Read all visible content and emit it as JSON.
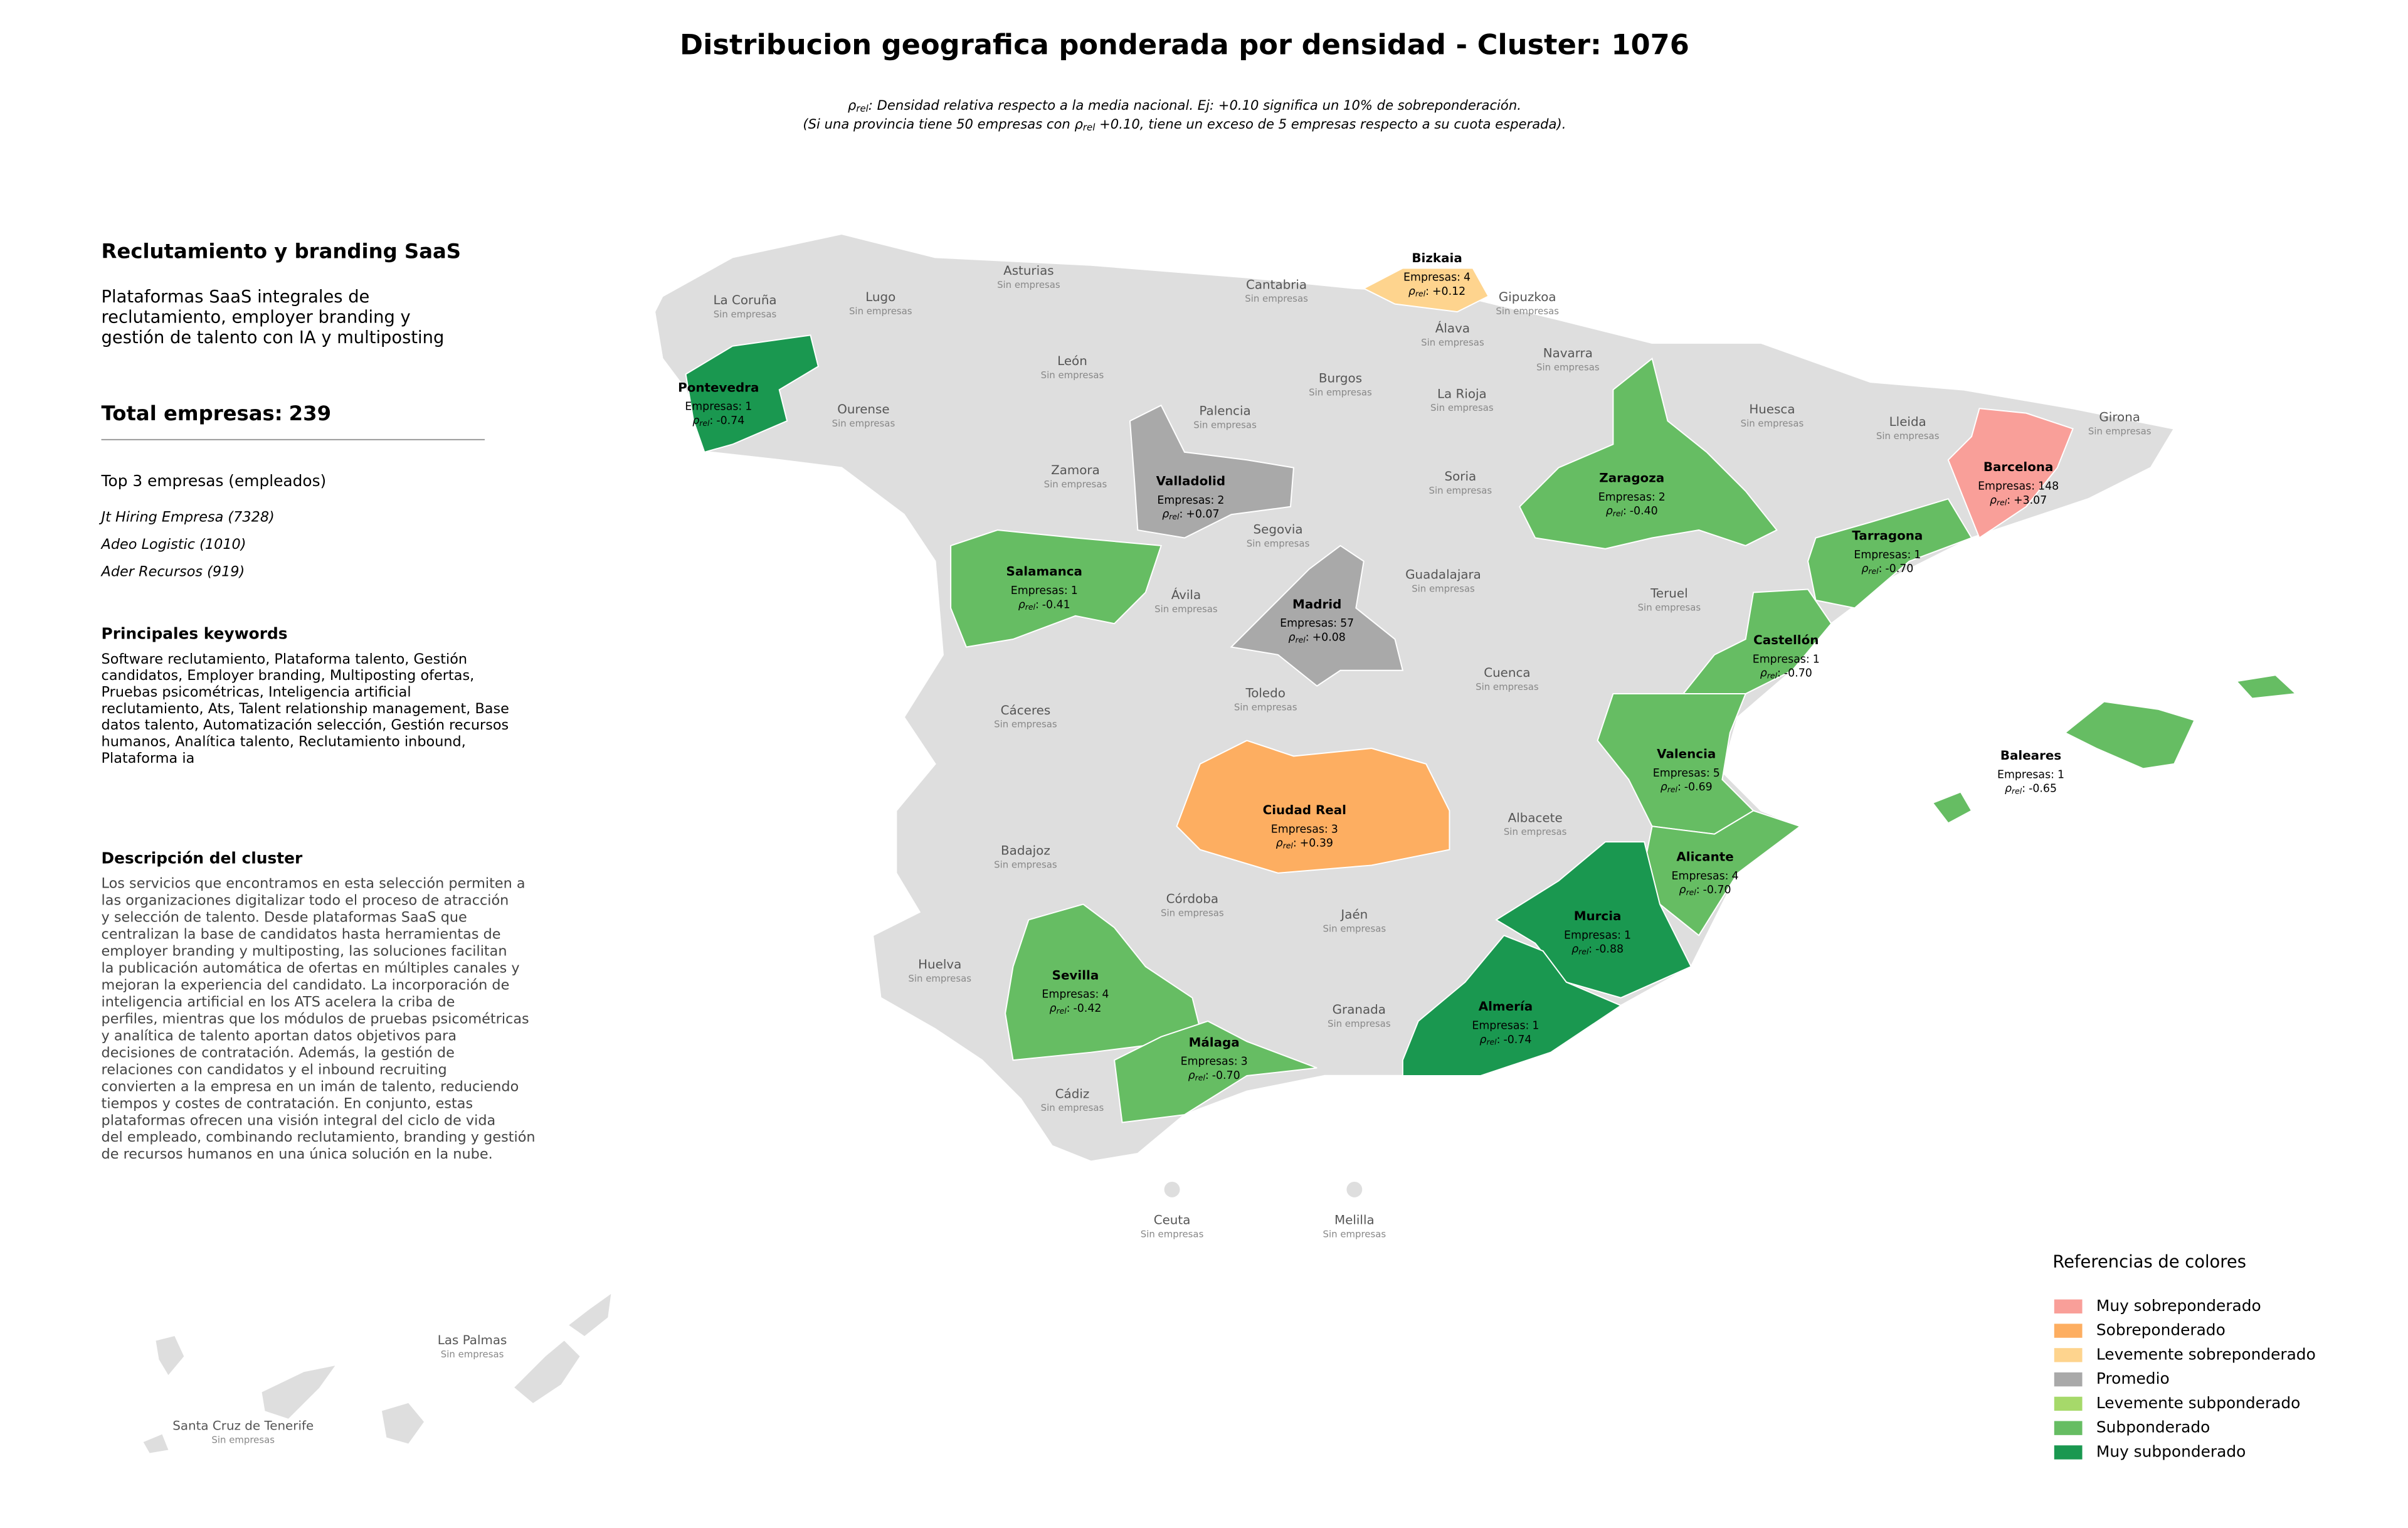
{
  "title": "Distribucion geografica ponderada por densidad - Cluster: 1076",
  "subtitle": {
    "rho_symbol": "ρ",
    "rho_subscript": "rel",
    "line1_text": ": Densidad relativa respecto a la media nacional. Ej: +0.10 significa un 10% de sobreponderación.",
    "line2_before": "(Si una provincia tiene 50 empresas con ",
    "line2_after": " +0.10, tiene un exceso de 5 empresas respecto a su cuota esperada)."
  },
  "panel": {
    "title": "Reclutamiento y branding SaaS",
    "summary_lines": [
      "Plataformas SaaS integrales de",
      "reclutamiento, employer branding y",
      "gestión de talento con IA y multiposting"
    ],
    "total_label": "Total empresas:",
    "total": 239,
    "top_heading": "Top 3 empresas (empleados)",
    "top_companies": [
      "Jt Hiring Empresa (7328)",
      "Adeo Logistic (1010)",
      "Ader Recursos (919)"
    ],
    "keywords_heading": "Principales keywords",
    "keywords_lines": [
      "Software reclutamiento, Plataforma talento, Gestión",
      "candidatos, Employer branding, Multiposting ofertas,",
      "Pruebas psicométricas, Inteligencia artificial",
      "reclutamiento, Ats, Talent relationship management, Base",
      "datos talento, Automatización selección, Gestión recursos",
      "humanos, Analítica talento, Reclutamiento inbound,",
      "Plataforma ia"
    ],
    "description_heading": "Descripción del cluster",
    "description_lines": [
      "Los servicios que encontramos en esta selección permiten a",
      "las organizaciones digitalizar todo el proceso de atracción",
      "y selección de talento. Desde plataformas SaaS que",
      "centralizan la base de candidatos hasta herramientas de",
      "employer branding y multiposting, las soluciones facilitan",
      "la publicación automática de ofertas en múltiples canales y",
      "mejoran la experiencia del candidato. La incorporación de",
      "inteligencia artificial en los ATS acelera la criba de",
      "perfiles, mientras que los módulos de pruebas psicométricas",
      "y analítica de talento aportan datos objetivos para",
      "decisiones de contratación. Además, la gestión de",
      "relaciones con candidatos y el inbound recruiting",
      "convierten a la empresa en un imán de talento, reduciendo",
      "tiempos y costes de contratación. En conjunto, estas",
      "plataformas ofrecen una visión integral del ciclo de vida",
      "del empleado, combinando reclutamiento, branding y gestión",
      "de recursos humanos en una única solución en la nube."
    ]
  },
  "labels": {
    "empresas": "Empresas:",
    "rho_colon": ":",
    "sin_empresas": "Sin empresas"
  },
  "provinces": [
    {
      "name": "Bizkaia",
      "empresas": 4,
      "rho": 0.12,
      "rho_label": "+0.12",
      "category": 2
    },
    {
      "name": "Pontevedra",
      "empresas": 1,
      "rho": -0.74,
      "rho_label": "-0.74",
      "category": 6
    },
    {
      "name": "Valladolid",
      "empresas": 2,
      "rho": 0.07,
      "rho_label": "+0.07",
      "category": 3
    },
    {
      "name": "Zaragoza",
      "empresas": 2,
      "rho": -0.4,
      "rho_label": "-0.40",
      "category": 5
    },
    {
      "name": "Barcelona",
      "empresas": 148,
      "rho": 3.07,
      "rho_label": "+3.07",
      "category": 0
    },
    {
      "name": "Tarragona",
      "empresas": 1,
      "rho": -0.7,
      "rho_label": "-0.70",
      "category": 5
    },
    {
      "name": "Salamanca",
      "empresas": 1,
      "rho": -0.41,
      "rho_label": "-0.41",
      "category": 5
    },
    {
      "name": "Madrid",
      "empresas": 57,
      "rho": 0.08,
      "rho_label": "+0.08",
      "category": 3
    },
    {
      "name": "Castellón",
      "empresas": 1,
      "rho": -0.7,
      "rho_label": "-0.70",
      "category": 5
    },
    {
      "name": "Valencia",
      "empresas": 5,
      "rho": -0.69,
      "rho_label": "-0.69",
      "category": 5
    },
    {
      "name": "Baleares",
      "empresas": 1,
      "rho": -0.65,
      "rho_label": "-0.65",
      "category": 5
    },
    {
      "name": "Ciudad Real",
      "empresas": 3,
      "rho": 0.39,
      "rho_label": "+0.39",
      "category": 1
    },
    {
      "name": "Alicante",
      "empresas": 4,
      "rho": -0.7,
      "rho_label": "-0.70",
      "category": 5
    },
    {
      "name": "Murcia",
      "empresas": 1,
      "rho": -0.88,
      "rho_label": "-0.88",
      "category": 6
    },
    {
      "name": "Sevilla",
      "empresas": 4,
      "rho": -0.42,
      "rho_label": "-0.42",
      "category": 5
    },
    {
      "name": "Almería",
      "empresas": 1,
      "rho": -0.74,
      "rho_label": "-0.74",
      "category": 6
    },
    {
      "name": "Málaga",
      "empresas": 3,
      "rho": -0.7,
      "rho_label": "-0.70",
      "category": 5
    }
  ],
  "empty_provinces": [
    "La Coruña",
    "Lugo",
    "Asturias",
    "Cantabria",
    "Gipuzkoa",
    "Álava",
    "Navarra",
    "León",
    "Burgos",
    "La Rioja",
    "Ourense",
    "Palencia",
    "Huesca",
    "Lleida",
    "Girona",
    "Zamora",
    "Soria",
    "Segovia",
    "Guadalajara",
    "Teruel",
    "Ávila",
    "Cuenca",
    "Toledo",
    "Cáceres",
    "Albacete",
    "Badajoz",
    "Córdoba",
    "Jaén",
    "Huelva",
    "Granada",
    "Cádiz",
    "Ceuta",
    "Melilla",
    "Las Palmas",
    "Santa Cruz de Tenerife"
  ],
  "legend": {
    "title": "Referencias de colores",
    "items": [
      {
        "label": "Muy sobreponderado",
        "color": "#f99f99"
      },
      {
        "label": "Sobreponderado",
        "color": "#fdae61"
      },
      {
        "label": "Levemente sobreponderado",
        "color": "#fed48e"
      },
      {
        "label": "Promedio",
        "color": "#a9a9a9"
      },
      {
        "label": "Levemente subponderado",
        "color": "#a6d96a"
      },
      {
        "label": "Subponderado",
        "color": "#66bd63"
      },
      {
        "label": "Muy subponderado",
        "color": "#1a9850"
      }
    ]
  }
}
